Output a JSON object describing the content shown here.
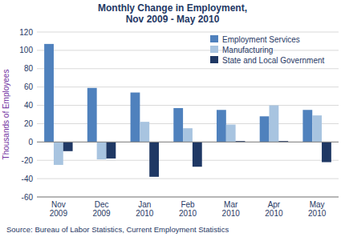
{
  "chart_data": {
    "type": "bar",
    "title": "Monthly Change in Employment,\nNov 2009 - May 2010",
    "y_label": "Thousands of Employees",
    "annotations": [
      "Source: Bureau of Labor Statistics, Current Employment Statistics"
    ],
    "categories": [
      "Nov\n2009",
      "Dec\n2009",
      "Jan\n2010",
      "Feb\n2010",
      "Mar\n2010",
      "Apr\n2010",
      "May\n2010"
    ],
    "series": [
      {
        "name": "Employment Services",
        "color": "#4F81BD",
        "values": [
          107,
          59,
          54,
          37,
          35,
          28,
          35
        ]
      },
      {
        "name": "Manufacturing",
        "color": "#A8C4E0",
        "values": [
          -25,
          -19,
          22,
          15,
          19,
          40,
          29
        ]
      },
      {
        "name": "State and Local Government",
        "color": "#1F3864",
        "values": [
          -10,
          -18,
          -38,
          -27,
          1,
          1,
          -22
        ]
      }
    ],
    "ylim": [
      -60,
      120
    ],
    "yticks": [
      -60,
      -40,
      -20,
      0,
      20,
      40,
      60,
      80,
      100,
      120
    ],
    "grid": true,
    "legend": "upper right"
  }
}
